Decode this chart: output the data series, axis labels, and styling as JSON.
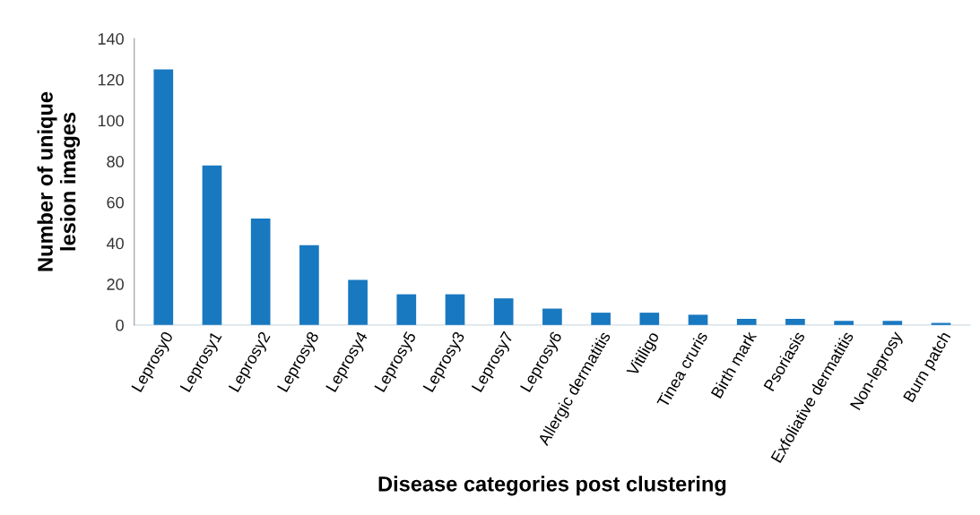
{
  "chart_data": {
    "type": "bar",
    "xlabel": "Disease categories post clustering",
    "ylabel": "Number of unique\nlesion images",
    "categories": [
      "Leprosy0",
      "Leprosy1",
      "Leprosy2",
      "Leprosy8",
      "Leprosy4",
      "Leprosy5",
      "Leprosy3",
      "Leprosy7",
      "Leprosy6",
      "Allergic dermatitis",
      "Vitiligo",
      "Tinea cruris",
      "Birth mark",
      "Psoriasis",
      "Exfoliative dermatitis",
      "Non-leprosy",
      "Burn patch"
    ],
    "values": [
      125,
      78,
      52,
      39,
      22,
      15,
      15,
      13,
      8,
      6,
      6,
      5,
      3,
      3,
      2,
      2,
      1
    ],
    "color": "#1878c0",
    "ylim": [
      0,
      140
    ],
    "yticks": [
      0,
      20,
      40,
      60,
      80,
      100,
      120,
      140
    ],
    "grid": false,
    "legend": false
  }
}
